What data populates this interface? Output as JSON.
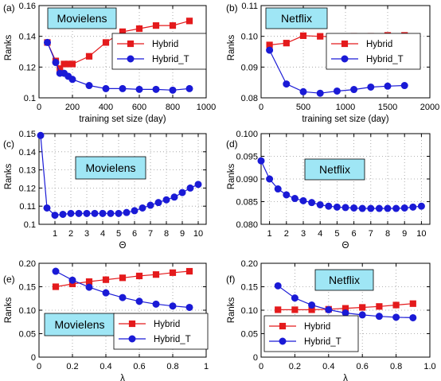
{
  "colors": {
    "hybrid": "#e41a1c",
    "hybrid_t": "#1a1ad6",
    "label_box": "#9fe6f5",
    "grid": "#9a9a9a"
  },
  "chart_data": [
    {
      "panel": "(a)",
      "type": "line",
      "textbox": "Movielens",
      "xlabel": "training set size (day)",
      "ylabel": "Ranks",
      "xlim": [
        0,
        1000
      ],
      "ylim": [
        0.1,
        0.16
      ],
      "xticks": [
        0,
        200,
        400,
        600,
        800,
        1000
      ],
      "xticklabels": [
        "0",
        "200",
        "400",
        "600",
        "800",
        "1000"
      ],
      "yticks": [
        0.1,
        0.12,
        0.14,
        0.16
      ],
      "yticklabels": [
        "0.1",
        "0.12",
        "0.14",
        "0.16"
      ],
      "grid": true,
      "legend": "center-right",
      "series": [
        {
          "name": "Hybrid",
          "marker": "square",
          "x": [
            50,
            100,
            125,
            150,
            175,
            200,
            300,
            400,
            500,
            600,
            700,
            800,
            900
          ],
          "y": [
            0.136,
            0.124,
            0.119,
            0.122,
            0.122,
            0.122,
            0.127,
            0.136,
            0.143,
            0.145,
            0.147,
            0.147,
            0.15
          ]
        },
        {
          "name": "Hybrid_T",
          "marker": "circle",
          "x": [
            50,
            100,
            125,
            150,
            175,
            200,
            300,
            400,
            500,
            600,
            700,
            800,
            900
          ],
          "y": [
            0.136,
            0.123,
            0.116,
            0.116,
            0.114,
            0.112,
            0.108,
            0.106,
            0.106,
            0.1055,
            0.1055,
            0.105,
            0.106
          ]
        }
      ]
    },
    {
      "panel": "(b)",
      "type": "line",
      "textbox": "Netflix",
      "xlabel": "training set size (day)",
      "ylabel": "Ranks",
      "xlim": [
        0,
        2000
      ],
      "ylim": [
        0.08,
        0.11
      ],
      "xticks": [
        0,
        500,
        1000,
        1500,
        2000
      ],
      "xticklabels": [
        "0",
        "500",
        "1000",
        "1500",
        "2000"
      ],
      "yticks": [
        0.08,
        0.09,
        0.1,
        0.11
      ],
      "yticklabels": [
        "0.08",
        "0.09",
        "0.10",
        "0.11"
      ],
      "grid": true,
      "legend": "center-right",
      "series": [
        {
          "name": "Hybrid",
          "marker": "square",
          "x": [
            100,
            300,
            500,
            700,
            900,
            1100,
            1300,
            1500,
            1700
          ],
          "y": [
            0.0972,
            0.0978,
            0.1002,
            0.1,
            0.0998,
            0.1,
            0.1,
            0.1003,
            0.1003
          ]
        },
        {
          "name": "Hybrid_T",
          "marker": "circle",
          "x": [
            100,
            300,
            500,
            700,
            900,
            1100,
            1300,
            1500,
            1700
          ],
          "y": [
            0.0955,
            0.0845,
            0.082,
            0.0815,
            0.0822,
            0.0827,
            0.0835,
            0.0838,
            0.084
          ]
        }
      ]
    },
    {
      "panel": "(c)",
      "type": "line",
      "textbox": "Movielens",
      "xlabel": "Θ",
      "ylabel": "Ranks",
      "xlim": [
        0,
        10.5
      ],
      "ylim": [
        0.1,
        0.15
      ],
      "xticks": [
        1,
        2,
        3,
        4,
        5,
        6,
        7,
        8,
        9,
        10
      ],
      "xticklabels": [
        "1",
        "2",
        "3",
        "4",
        "5",
        "6",
        "7",
        "8",
        "9",
        "10"
      ],
      "yticks": [
        0.1,
        0.11,
        0.12,
        0.13,
        0.14,
        0.15
      ],
      "yticklabels": [
        "0.1",
        "0.11",
        "0.12",
        "0.13",
        "0.14",
        "0.15"
      ],
      "grid": true,
      "legend": "none",
      "series": [
        {
          "name": "Hybrid_T",
          "marker": "circle",
          "x": [
            0.1,
            0.5,
            1,
            1.5,
            2,
            2.5,
            3,
            3.5,
            4,
            4.5,
            5,
            5.5,
            6,
            6.5,
            7,
            7.5,
            8,
            8.5,
            9,
            9.5,
            10
          ],
          "y": [
            0.149,
            0.109,
            0.105,
            0.1055,
            0.106,
            0.106,
            0.106,
            0.106,
            0.106,
            0.106,
            0.106,
            0.1065,
            0.1075,
            0.109,
            0.1105,
            0.112,
            0.1135,
            0.115,
            0.1175,
            0.12,
            0.122
          ]
        }
      ]
    },
    {
      "panel": "(d)",
      "type": "line",
      "textbox": "Netflix",
      "xlabel": "Θ",
      "ylabel": "Ranks",
      "xlim": [
        0.5,
        10.5
      ],
      "ylim": [
        0.08,
        0.1
      ],
      "xticks": [
        1,
        2,
        3,
        4,
        5,
        6,
        7,
        8,
        9,
        10
      ],
      "xticklabels": [
        "1",
        "2",
        "3",
        "4",
        "5",
        "6",
        "7",
        "8",
        "9",
        "10"
      ],
      "yticks": [
        0.08,
        0.085,
        0.09,
        0.095,
        0.1
      ],
      "yticklabels": [
        "0.080",
        "0.085",
        "0.090",
        "0.095",
        "0.100"
      ],
      "grid": true,
      "legend": "none",
      "series": [
        {
          "name": "Hybrid_T",
          "marker": "circle",
          "x": [
            0.5,
            1,
            1.5,
            2,
            2.5,
            3,
            3.5,
            4,
            4.5,
            5,
            5.5,
            6,
            6.5,
            7,
            7.5,
            8,
            8.5,
            9,
            9.5,
            10
          ],
          "y": [
            0.094,
            0.09,
            0.0878,
            0.0865,
            0.0857,
            0.0852,
            0.0848,
            0.0843,
            0.084,
            0.0838,
            0.0837,
            0.0836,
            0.0835,
            0.0835,
            0.0835,
            0.0835,
            0.0835,
            0.0836,
            0.0838,
            0.084
          ]
        }
      ]
    },
    {
      "panel": "(e)",
      "type": "line",
      "textbox": "Movielens",
      "xlabel": "λ",
      "ylabel": "Ranks",
      "xlim": [
        0,
        1
      ],
      "ylim": [
        0,
        0.2
      ],
      "xticks": [
        0,
        0.2,
        0.4,
        0.6,
        0.8,
        1
      ],
      "xticklabels": [
        "0",
        "0.2",
        "0.4",
        "0.6",
        "0.8",
        "1"
      ],
      "yticks": [
        0,
        0.05,
        0.1,
        0.15,
        0.2
      ],
      "yticklabels": [
        "0",
        "0.05",
        "0.10",
        "0.15",
        "0.20"
      ],
      "grid": true,
      "legend": "lower-right",
      "series": [
        {
          "name": "Hybrid",
          "marker": "square",
          "x": [
            0.1,
            0.2,
            0.3,
            0.4,
            0.5,
            0.6,
            0.7,
            0.8,
            0.9
          ],
          "y": [
            0.15,
            0.156,
            0.161,
            0.165,
            0.169,
            0.173,
            0.176,
            0.18,
            0.183
          ]
        },
        {
          "name": "Hybrid_T",
          "marker": "circle",
          "x": [
            0.1,
            0.2,
            0.3,
            0.4,
            0.5,
            0.6,
            0.7,
            0.8,
            0.9
          ],
          "y": [
            0.183,
            0.164,
            0.149,
            0.137,
            0.127,
            0.119,
            0.113,
            0.109,
            0.106
          ]
        }
      ]
    },
    {
      "panel": "(f)",
      "type": "line",
      "textbox": "Netflix",
      "xlabel": "λ",
      "ylabel": "Ranks",
      "xlim": [
        0,
        1
      ],
      "ylim": [
        0,
        0.2
      ],
      "xticks": [
        0,
        0.2,
        0.4,
        0.6,
        0.8,
        1
      ],
      "xticklabels": [
        "0",
        "0.2",
        "0.4",
        "0.6",
        "0.8",
        "1.0"
      ],
      "yticks": [
        0,
        0.05,
        0.1,
        0.15,
        0.2
      ],
      "yticklabels": [
        "0",
        "0.05",
        "0.10",
        "0.15",
        "0.20"
      ],
      "grid": true,
      "legend": "lower-left",
      "series": [
        {
          "name": "Hybrid",
          "marker": "square",
          "x": [
            0.1,
            0.2,
            0.3,
            0.4,
            0.5,
            0.6,
            0.7,
            0.8,
            0.9
          ],
          "y": [
            0.101,
            0.101,
            0.101,
            0.102,
            0.104,
            0.106,
            0.108,
            0.111,
            0.114
          ]
        },
        {
          "name": "Hybrid_T",
          "marker": "circle",
          "x": [
            0.1,
            0.2,
            0.3,
            0.4,
            0.5,
            0.6,
            0.7,
            0.8,
            0.9
          ],
          "y": [
            0.152,
            0.126,
            0.111,
            0.101,
            0.094,
            0.09,
            0.087,
            0.085,
            0.084
          ]
        }
      ]
    }
  ]
}
